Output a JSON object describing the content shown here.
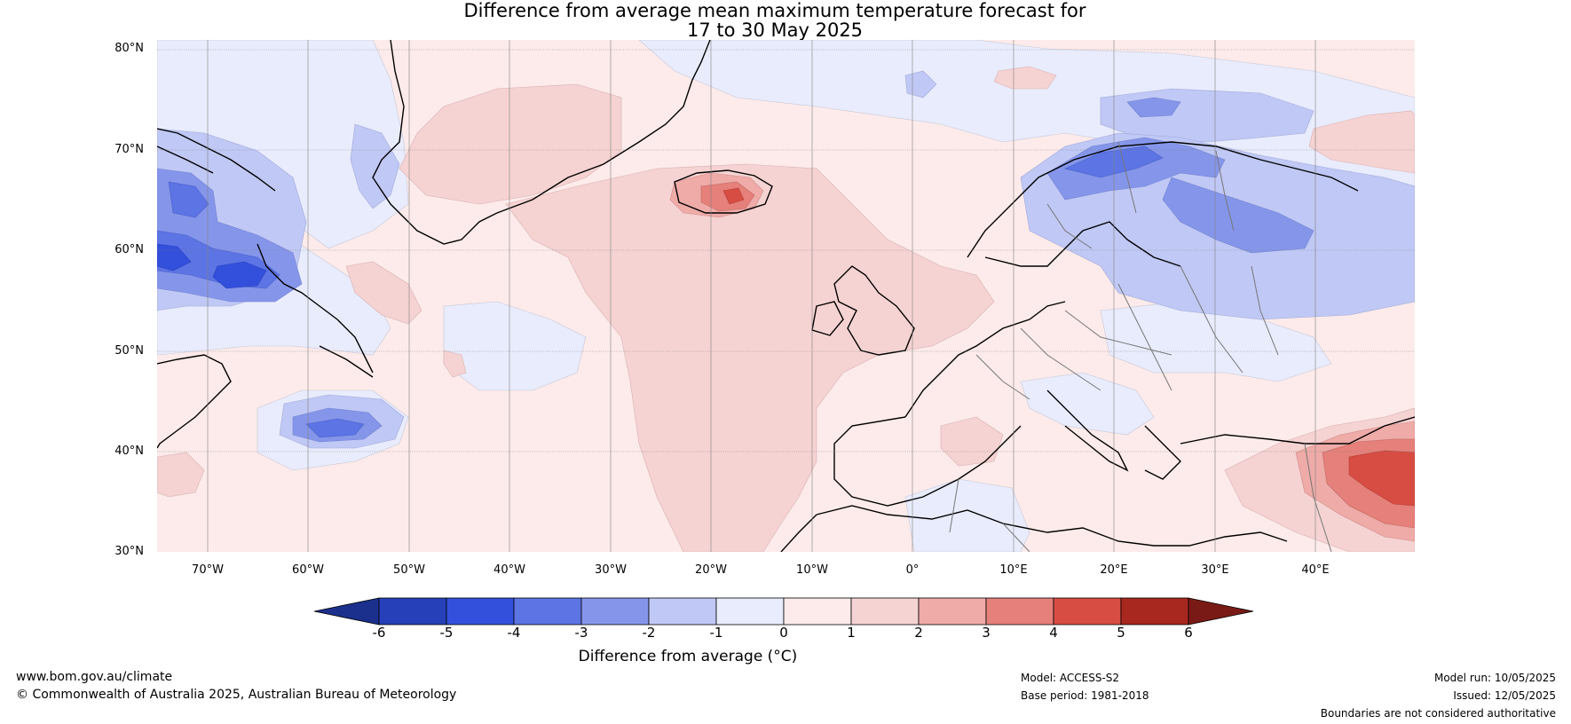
{
  "title_line1": "Difference from average mean maximum temperature forecast for",
  "title_line2": "17 to 30 May 2025",
  "lat_labels": [
    "80°N",
    "70°N",
    "60°N",
    "50°N",
    "40°N",
    "30°N"
  ],
  "lon_labels": [
    "70°W",
    "60°W",
    "50°W",
    "40°W",
    "30°W",
    "20°W",
    "10°W",
    "0°",
    "10°E",
    "20°E",
    "30°E",
    "40°E"
  ],
  "colorbar": {
    "label": "Difference from average (°C)",
    "ticks": [
      "-6",
      "-5",
      "-4",
      "-3",
      "-2",
      "-1",
      "0",
      "1",
      "2",
      "3",
      "4",
      "5",
      "6"
    ],
    "colors": [
      "#1b2f8c",
      "#2540b8",
      "#3350dc",
      "#5c74e4",
      "#8596ea",
      "#c0c8f5",
      "#e9ecfc",
      "#fcebea",
      "#f5d3d2",
      "#eeaba8",
      "#e5807a",
      "#d84d43",
      "#a82820",
      "#7a1a16"
    ]
  },
  "footer": {
    "website": "www.bom.gov.au/climate",
    "copyright": "© Commonwealth of Australia 2025, Australian Bureau of Meteorology",
    "model": "Model: ACCESS-S2",
    "base_period": "Base period: 1981-2018",
    "model_run": "Model run: 10/05/2025",
    "issued": "Issued: 12/05/2025",
    "disclaimer": "Boundaries are not considered authoritative"
  }
}
